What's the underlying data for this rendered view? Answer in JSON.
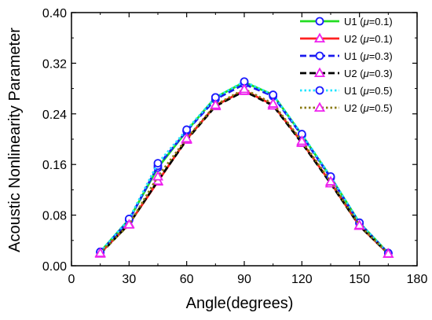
{
  "chart_data": {
    "type": "line",
    "title": "",
    "xlabel": "Angle(degrees)",
    "ylabel": "Acoustic Nonlinearity Parameter",
    "xlim": [
      0,
      180
    ],
    "ylim": [
      0,
      0.4
    ],
    "xticks": [
      0,
      30,
      60,
      90,
      120,
      150,
      180
    ],
    "yticks": [
      0.0,
      0.08,
      0.16,
      0.24,
      0.32,
      0.4
    ],
    "xtick_labels": [
      "0",
      "30",
      "60",
      "90",
      "120",
      "150",
      "180"
    ],
    "ytick_labels": [
      "0.00",
      "0.08",
      "0.16",
      "0.24",
      "0.32",
      "0.40"
    ],
    "grid": false,
    "legend_position": "top-right",
    "x": [
      15,
      30,
      45,
      60,
      75,
      90,
      105,
      120,
      135,
      150,
      165
    ],
    "series": [
      {
        "name": "U1 (μ=0.1)",
        "label_main": "U1 (",
        "label_mu": "μ",
        "label_tail": "=0.1)",
        "color": "#22dd22",
        "line_style": "solid",
        "marker": "circle",
        "marker_color": "#1a1aff",
        "values": [
          0.022,
          0.073,
          0.155,
          0.213,
          0.266,
          0.29,
          0.27,
          0.207,
          0.14,
          0.068,
          0.02
        ]
      },
      {
        "name": "U2 (μ=0.1)",
        "label_main": "U2 (",
        "label_mu": "μ",
        "label_tail": "=0.1)",
        "color": "#ff2020",
        "line_style": "solid",
        "marker": "triangle",
        "marker_color": "#ee22ee",
        "values": [
          0.02,
          0.066,
          0.133,
          0.2,
          0.253,
          0.277,
          0.254,
          0.195,
          0.131,
          0.063,
          0.019
        ]
      },
      {
        "name": "U1 (μ=0.3)",
        "label_main": "U1 (",
        "label_mu": "μ",
        "label_tail": "=0.3)",
        "color": "#1a1aee",
        "line_style": "dash",
        "marker": "circle",
        "marker_color": "#1a1aff",
        "values": [
          0.021,
          0.072,
          0.158,
          0.213,
          0.263,
          0.287,
          0.268,
          0.206,
          0.139,
          0.067,
          0.02
        ]
      },
      {
        "name": "U2 (μ=0.3)",
        "label_main": "U2 (",
        "label_mu": "μ",
        "label_tail": "=0.3)",
        "color": "#000000",
        "line_style": "dash",
        "marker": "triangle",
        "marker_color": "#ee22ee",
        "values": [
          0.019,
          0.066,
          0.134,
          0.199,
          0.252,
          0.276,
          0.253,
          0.194,
          0.13,
          0.063,
          0.019
        ]
      },
      {
        "name": "U1 (μ=0.5)",
        "label_main": "U1 (",
        "label_mu": "μ",
        "label_tail": "=0.5)",
        "color": "#22e5ff",
        "line_style": "dot",
        "marker": "circle",
        "marker_color": "#1a1aff",
        "values": [
          0.022,
          0.074,
          0.162,
          0.215,
          0.266,
          0.291,
          0.27,
          0.208,
          0.141,
          0.068,
          0.02
        ]
      },
      {
        "name": "U2 (μ=0.5)",
        "label_main": "U2 (",
        "label_mu": "μ",
        "label_tail": "=0.5)",
        "color": "#8a7a10",
        "line_style": "dot",
        "marker": "triangle",
        "marker_color": "#ee22ee",
        "values": [
          0.02,
          0.065,
          0.141,
          0.201,
          0.254,
          0.279,
          0.256,
          0.197,
          0.133,
          0.064,
          0.019
        ]
      }
    ]
  }
}
